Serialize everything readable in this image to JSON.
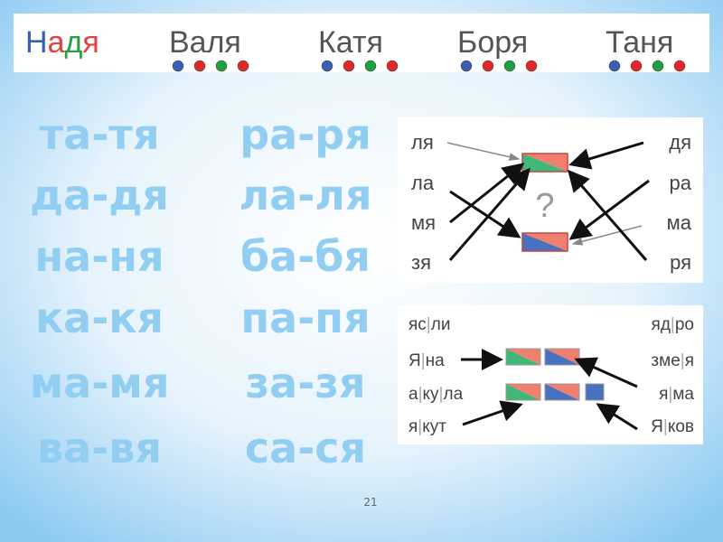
{
  "header": {
    "first_name_letters": [
      "Н",
      "а",
      "д",
      "я"
    ],
    "names": [
      "Валя",
      "Катя",
      "Боря",
      "Таня"
    ]
  },
  "syllables": {
    "left": [
      "та-тя",
      "да-дя",
      "на-ня",
      "ка-кя",
      "ма-мя",
      "ва-вя"
    ],
    "right": [
      "ра-ря",
      "ла-ля",
      "ба-бя",
      "па-пя",
      "за-зя",
      "са-ся"
    ]
  },
  "diagram1": {
    "left": [
      "ля",
      "ла",
      "мя",
      "зя"
    ],
    "right": [
      "дя",
      "ра",
      "ма",
      "ря"
    ],
    "question": "?"
  },
  "diagram2": {
    "left": [
      [
        "яс",
        "ли"
      ],
      [
        "Я",
        "на"
      ],
      [
        "а",
        "ку",
        "ла"
      ],
      [
        "я",
        "кут"
      ]
    ],
    "right": [
      [
        "яд",
        "ро"
      ],
      [
        "зме",
        "я"
      ],
      [
        "я",
        "ма"
      ],
      [
        "Я",
        "ков"
      ]
    ]
  },
  "page_number": "21"
}
